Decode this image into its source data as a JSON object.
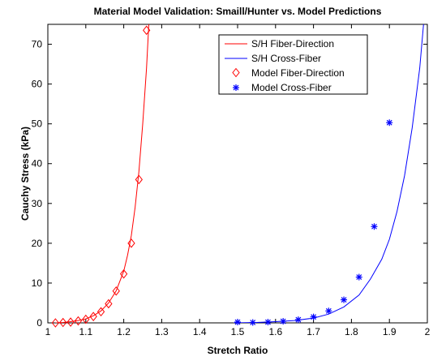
{
  "chart_data": {
    "type": "line",
    "title": "Material Model Validation: Smaill/Hunter vs. Model Predictions",
    "xlabel": "Stretch Ratio",
    "ylabel": "Cauchy Stress (kPa)",
    "xlim": [
      1,
      2
    ],
    "ylim": [
      0,
      75
    ],
    "x_ticks": [
      1,
      1.1,
      1.2,
      1.3,
      1.4,
      1.5,
      1.6,
      1.7,
      1.8,
      1.9,
      2
    ],
    "y_ticks": [
      0,
      10,
      20,
      30,
      40,
      50,
      60,
      70
    ],
    "grid": false,
    "legend_position": "top-right",
    "series": [
      {
        "name": "S/H Fiber-Direction",
        "kind": "line",
        "color": "#ff0000",
        "x": [
          1.02,
          1.04,
          1.06,
          1.08,
          1.1,
          1.12,
          1.14,
          1.16,
          1.18,
          1.2,
          1.21,
          1.22,
          1.23,
          1.24,
          1.25,
          1.26,
          1.266
        ],
        "y": [
          0,
          0.1,
          0.3,
          0.6,
          1.0,
          1.8,
          3.0,
          5.0,
          8.0,
          13.0,
          17.0,
          22.0,
          29.0,
          38.0,
          50.0,
          64.0,
          75.0
        ]
      },
      {
        "name": "S/H Cross-Fiber",
        "kind": "line",
        "color": "#0000ff",
        "x": [
          1.49,
          1.55,
          1.6,
          1.65,
          1.7,
          1.74,
          1.78,
          1.82,
          1.85,
          1.88,
          1.9,
          1.92,
          1.94,
          1.96,
          1.98,
          1.99
        ],
        "y": [
          0,
          0.1,
          0.3,
          0.6,
          1.2,
          2.2,
          4.0,
          7.0,
          11.0,
          16.0,
          21.0,
          28.0,
          37.0,
          49.0,
          64.0,
          75.0
        ]
      },
      {
        "name": "Model Fiber-Direction",
        "kind": "scatter",
        "marker": "diamond",
        "color": "#ff0000",
        "x": [
          1.02,
          1.04,
          1.06,
          1.08,
          1.1,
          1.12,
          1.14,
          1.16,
          1.18,
          1.2,
          1.22,
          1.24,
          1.26
        ],
        "y": [
          0,
          0.1,
          0.2,
          0.5,
          0.9,
          1.6,
          2.8,
          4.8,
          8.0,
          12.3,
          20.0,
          36.0,
          73.5
        ]
      },
      {
        "name": "Model Cross-Fiber",
        "kind": "scatter",
        "marker": "star",
        "color": "#0000ff",
        "x": [
          1.5,
          1.54,
          1.58,
          1.62,
          1.66,
          1.7,
          1.74,
          1.78,
          1.82,
          1.86,
          1.9
        ],
        "y": [
          0.2,
          0.1,
          0.2,
          0.4,
          0.8,
          1.5,
          3.0,
          5.8,
          11.5,
          24.2,
          50.3
        ]
      }
    ]
  }
}
